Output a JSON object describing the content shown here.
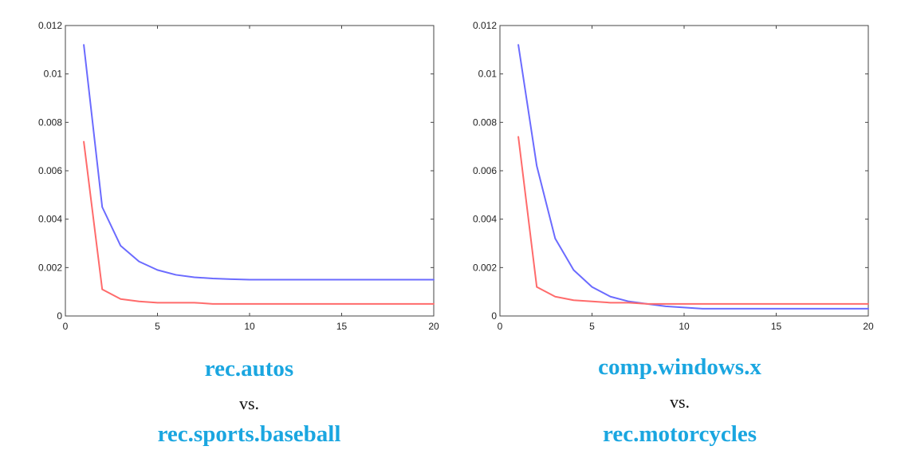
{
  "chart_data": [
    {
      "type": "line",
      "title": "",
      "xlabel": "",
      "ylabel": "",
      "xlim": [
        0,
        20
      ],
      "ylim": [
        0,
        0.012
      ],
      "xticks": [
        "0",
        "5",
        "10",
        "15",
        "20"
      ],
      "yticks": [
        "0",
        "0.002",
        "0.004",
        "0.006",
        "0.008",
        "0.01",
        "0.012"
      ],
      "grid": false,
      "legend": "none",
      "series": [
        {
          "color": "#6b6bff",
          "x": [
            1,
            2,
            3,
            4,
            5,
            6,
            7,
            8,
            9,
            10,
            11,
            12,
            13,
            14,
            15,
            16,
            17,
            18,
            19,
            20
          ],
          "values": [
            0.0112,
            0.0045,
            0.0029,
            0.00225,
            0.0019,
            0.0017,
            0.0016,
            0.00155,
            0.00152,
            0.0015,
            0.0015,
            0.0015,
            0.0015,
            0.0015,
            0.0015,
            0.0015,
            0.0015,
            0.0015,
            0.0015,
            0.0015
          ]
        },
        {
          "color": "#ff6b6b",
          "x": [
            1,
            2,
            3,
            4,
            5,
            6,
            7,
            8,
            9,
            10,
            11,
            12,
            13,
            14,
            15,
            16,
            17,
            18,
            19,
            20
          ],
          "values": [
            0.0072,
            0.0011,
            0.0007,
            0.0006,
            0.00055,
            0.00055,
            0.00055,
            0.0005,
            0.0005,
            0.0005,
            0.0005,
            0.0005,
            0.0005,
            0.0005,
            0.0005,
            0.0005,
            0.0005,
            0.0005,
            0.0005,
            0.0005
          ]
        }
      ]
    },
    {
      "type": "line",
      "title": "",
      "xlabel": "",
      "ylabel": "",
      "xlim": [
        0,
        20
      ],
      "ylim": [
        0,
        0.012
      ],
      "xticks": [
        "0",
        "5",
        "10",
        "15",
        "20"
      ],
      "yticks": [
        "0",
        "0.002",
        "0.004",
        "0.006",
        "0.008",
        "0.01",
        "0.012"
      ],
      "grid": false,
      "legend": "none",
      "series": [
        {
          "color": "#6b6bff",
          "x": [
            1,
            2,
            3,
            4,
            5,
            6,
            7,
            8,
            9,
            10,
            11,
            12,
            13,
            14,
            15,
            16,
            17,
            18,
            19,
            20
          ],
          "values": [
            0.0112,
            0.0062,
            0.0032,
            0.0019,
            0.0012,
            0.0008,
            0.0006,
            0.0005,
            0.0004,
            0.00035,
            0.0003,
            0.0003,
            0.0003,
            0.0003,
            0.0003,
            0.0003,
            0.0003,
            0.0003,
            0.0003,
            0.0003
          ]
        },
        {
          "color": "#ff6b6b",
          "x": [
            1,
            2,
            3,
            4,
            5,
            6,
            7,
            8,
            9,
            10,
            11,
            12,
            13,
            14,
            15,
            16,
            17,
            18,
            19,
            20
          ],
          "values": [
            0.0074,
            0.0012,
            0.0008,
            0.00065,
            0.0006,
            0.00055,
            0.00055,
            0.0005,
            0.0005,
            0.0005,
            0.0005,
            0.0005,
            0.0005,
            0.0005,
            0.0005,
            0.0005,
            0.0005,
            0.0005,
            0.0005,
            0.0005
          ]
        }
      ]
    }
  ],
  "captions": [
    {
      "top": "rec.autos",
      "vs": "vs.",
      "bottom": "rec.sports.baseball"
    },
    {
      "top": "comp.windows.x",
      "vs": "vs.",
      "bottom": "rec.motorcycles"
    }
  ]
}
